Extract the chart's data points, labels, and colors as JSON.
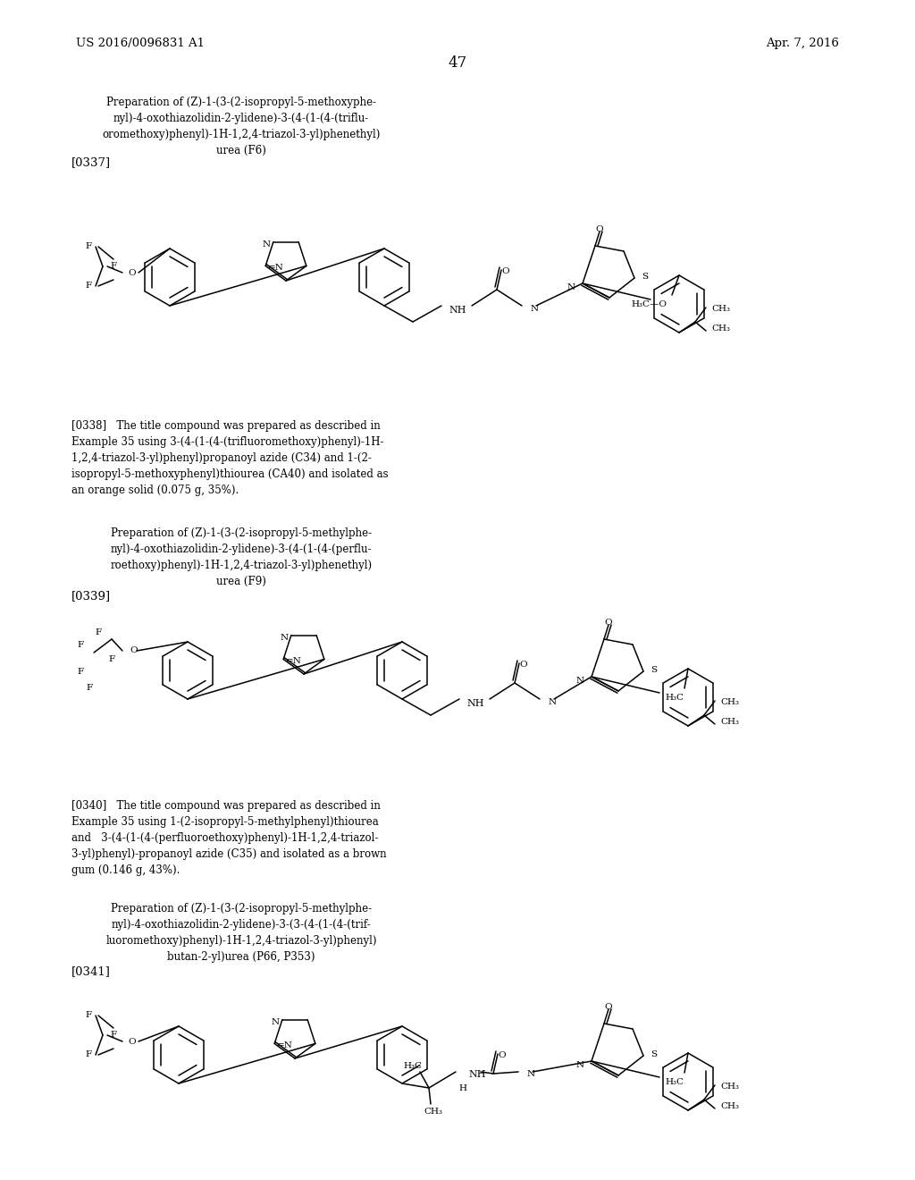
{
  "page_number": "47",
  "patent_number": "US 2016/0096831 A1",
  "patent_date": "Apr. 7, 2016",
  "background_color": "#ffffff",
  "lw": 1.1,
  "font_chemical": 7.5,
  "font_label": 9.5,
  "font_body": 8.5,
  "font_title": 8.5,
  "font_header": 9.5,
  "font_page": 12
}
